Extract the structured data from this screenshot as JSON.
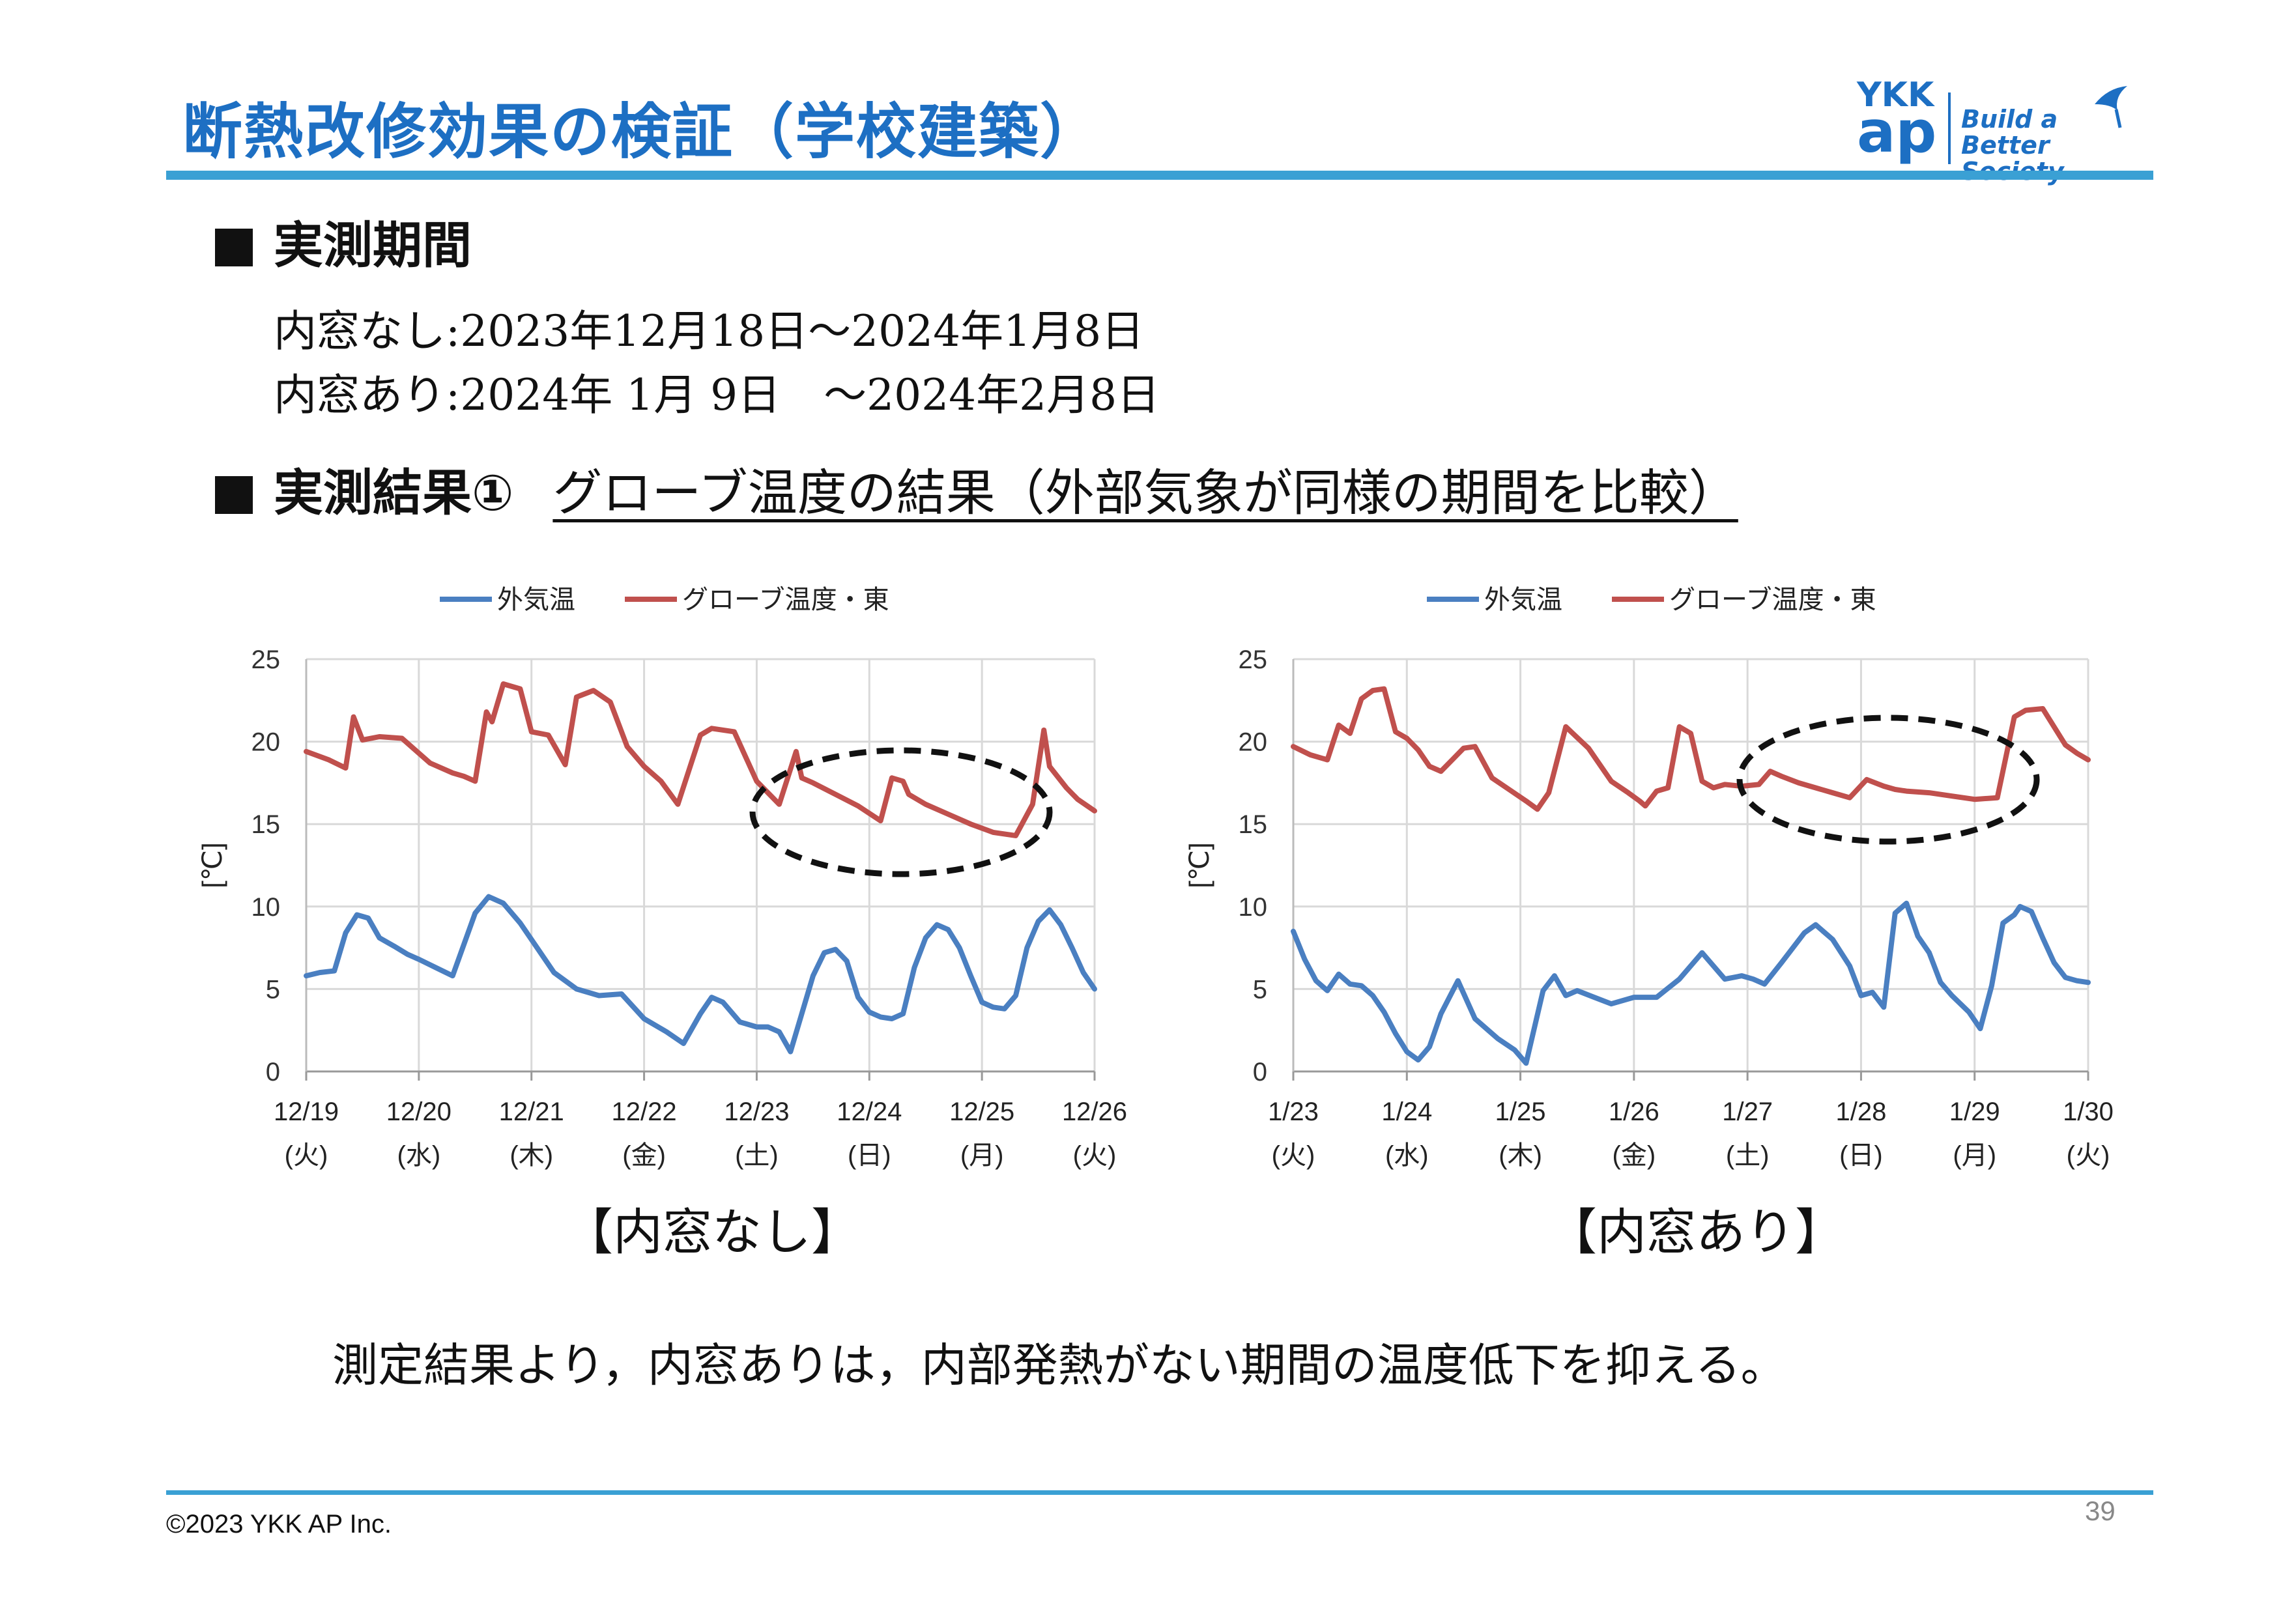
{
  "slide": {
    "title": "断熱改修効果の検証（学校建築）",
    "logo": {
      "mark_top": "YKK",
      "mark_bottom": "ap",
      "tagline_1": "Build a",
      "tagline_2": "Better Society"
    },
    "section1_heading": "実測期間",
    "period_without": "内窓なし:2023年12月18日～2024年1月8日",
    "period_with": "内窓あり:2024年 1月 9日　～2024年2月8日",
    "section2_heading": "実測結果①",
    "section2_subheading": "グローブ温度の結果（外部気象が同様の期間を比較）",
    "caption_left": "【内窓なし】",
    "caption_right": "【内窓あり】",
    "conclusion": "測定結果より，内窓ありは，内部発熱がない期間の温度低下を抑える。",
    "copyright": "©2023 YKK AP Inc.",
    "page_number": "39"
  },
  "colors": {
    "title": "#1d6fc3",
    "rule": "#3aa0d4",
    "outdoor": "#4a7fc1",
    "globe": "#c0504d",
    "grid": "#d9d9d9"
  },
  "chart_data": [
    {
      "type": "line",
      "ylabel": "[℃]",
      "ylim": [
        0,
        25
      ],
      "yticks": [
        "0",
        "5",
        "10",
        "15",
        "20",
        "25"
      ],
      "grid": true,
      "legend": "top",
      "categories": [
        "12/19",
        "12/20",
        "12/21",
        "12/22",
        "12/23",
        "12/24",
        "12/25",
        "12/26"
      ],
      "weekdays": [
        "(火)",
        "(水)",
        "(木)",
        "(金)",
        "(土)",
        "(日)",
        "(月)",
        "(火)"
      ],
      "annotation": "dashed ellipse around Globe temperature, 12/23–12/25",
      "series": [
        {
          "name": "外気温",
          "color": "#4a7fc1",
          "x": [
            0,
            0.12,
            0.25,
            0.35,
            0.45,
            0.55,
            0.65,
            0.78,
            0.9,
            1.0,
            1.15,
            1.3,
            1.5,
            1.62,
            1.75,
            1.9,
            2.05,
            2.2,
            2.4,
            2.6,
            2.8,
            3.0,
            3.2,
            3.35,
            3.5,
            3.6,
            3.7,
            3.85,
            4.0,
            4.1,
            4.2,
            4.3,
            4.4,
            4.5,
            4.6,
            4.7,
            4.8,
            4.9,
            5.0,
            5.1,
            5.2,
            5.3,
            5.4,
            5.5,
            5.6,
            5.7,
            5.8,
            5.9,
            6.0,
            6.1,
            6.2,
            6.3,
            6.4,
            6.5,
            6.6,
            6.7,
            6.8,
            6.9,
            7.0
          ],
          "values": [
            5.8,
            6.0,
            6.1,
            8.4,
            9.5,
            9.3,
            8.1,
            7.6,
            7.1,
            6.8,
            6.3,
            5.8,
            9.6,
            10.6,
            10.2,
            9.0,
            7.5,
            6.0,
            5.0,
            4.6,
            4.7,
            3.2,
            2.4,
            1.7,
            3.5,
            4.5,
            4.2,
            3.0,
            2.7,
            2.7,
            2.4,
            1.2,
            3.5,
            5.8,
            7.2,
            7.4,
            6.7,
            4.5,
            3.6,
            3.3,
            3.2,
            3.5,
            6.3,
            8.1,
            8.9,
            8.6,
            7.5,
            5.8,
            4.2,
            3.9,
            3.8,
            4.6,
            7.5,
            9.1,
            9.8,
            8.9,
            7.5,
            6.0,
            5.0
          ]
        },
        {
          "name": "グローブ温度・東",
          "color": "#c0504d",
          "x": [
            0,
            0.2,
            0.35,
            0.42,
            0.5,
            0.65,
            0.85,
            0.95,
            1.1,
            1.3,
            1.4,
            1.5,
            1.6,
            1.65,
            1.75,
            1.9,
            2.0,
            2.15,
            2.3,
            2.4,
            2.55,
            2.7,
            2.85,
            3.0,
            3.15,
            3.3,
            3.5,
            3.6,
            3.8,
            4.0,
            4.2,
            4.35,
            4.4,
            4.5,
            4.7,
            4.9,
            5.1,
            5.2,
            5.3,
            5.35,
            5.5,
            5.7,
            5.9,
            6.1,
            6.3,
            6.45,
            6.55,
            6.6,
            6.75,
            6.85,
            7.0
          ],
          "values": [
            19.4,
            18.9,
            18.4,
            21.5,
            20.1,
            20.3,
            20.2,
            19.6,
            18.7,
            18.1,
            17.9,
            17.6,
            21.8,
            21.2,
            23.5,
            23.2,
            20.6,
            20.4,
            18.6,
            22.7,
            23.1,
            22.4,
            19.7,
            18.5,
            17.6,
            16.2,
            20.4,
            20.8,
            20.6,
            17.6,
            16.2,
            19.4,
            17.8,
            17.5,
            16.8,
            16.1,
            15.2,
            17.8,
            17.6,
            16.8,
            16.2,
            15.6,
            15.0,
            14.5,
            14.3,
            16.2,
            20.7,
            18.5,
            17.2,
            16.5,
            15.8
          ]
        }
      ]
    },
    {
      "type": "line",
      "ylabel": "[℃]",
      "ylim": [
        0,
        25
      ],
      "yticks": [
        "0",
        "5",
        "10",
        "15",
        "20",
        "25"
      ],
      "grid": true,
      "legend": "top",
      "categories": [
        "1/23",
        "1/24",
        "1/25",
        "1/26",
        "1/27",
        "1/28",
        "1/29",
        "1/30"
      ],
      "weekdays": [
        "(火)",
        "(水)",
        "(木)",
        "(金)",
        "(土)",
        "(日)",
        "(月)",
        "(火)"
      ],
      "annotation": "dashed ellipse around Globe temperature, 1/27–1/29",
      "series": [
        {
          "name": "外気温",
          "color": "#4a7fc1",
          "x": [
            0,
            0.1,
            0.2,
            0.3,
            0.4,
            0.5,
            0.6,
            0.7,
            0.8,
            0.9,
            1.0,
            1.1,
            1.2,
            1.3,
            1.45,
            1.6,
            1.8,
            1.95,
            2.05,
            2.2,
            2.3,
            2.4,
            2.5,
            2.65,
            2.8,
            3.0,
            3.2,
            3.4,
            3.6,
            3.8,
            3.95,
            4.05,
            4.15,
            4.3,
            4.5,
            4.6,
            4.75,
            4.9,
            5.0,
            5.1,
            5.2,
            5.3,
            5.4,
            5.5,
            5.6,
            5.7,
            5.8,
            5.95,
            6.05,
            6.15,
            6.25,
            6.35,
            6.4,
            6.5,
            6.6,
            6.7,
            6.8,
            6.9,
            7.0
          ],
          "values": [
            8.5,
            6.8,
            5.5,
            4.9,
            5.9,
            5.3,
            5.2,
            4.6,
            3.6,
            2.3,
            1.2,
            0.7,
            1.5,
            3.5,
            5.5,
            3.2,
            2.0,
            1.3,
            0.5,
            4.9,
            5.8,
            4.6,
            4.9,
            4.5,
            4.1,
            4.5,
            4.5,
            5.6,
            7.2,
            5.6,
            5.8,
            5.6,
            5.3,
            6.6,
            8.4,
            8.9,
            8.0,
            6.4,
            4.6,
            4.8,
            3.9,
            9.6,
            10.2,
            8.2,
            7.2,
            5.4,
            4.6,
            3.6,
            2.6,
            5.2,
            9.0,
            9.5,
            10.0,
            9.7,
            8.1,
            6.6,
            5.7,
            5.5,
            5.4
          ]
        },
        {
          "name": "グローブ温度・東",
          "color": "#c0504d",
          "x": [
            0,
            0.15,
            0.3,
            0.4,
            0.5,
            0.6,
            0.7,
            0.8,
            0.9,
            1.0,
            1.1,
            1.2,
            1.3,
            1.4,
            1.5,
            1.6,
            1.75,
            1.9,
            2.05,
            2.15,
            2.25,
            2.4,
            2.6,
            2.8,
            2.95,
            3.05,
            3.1,
            3.2,
            3.3,
            3.4,
            3.5,
            3.6,
            3.7,
            3.8,
            3.95,
            4.1,
            4.2,
            4.3,
            4.45,
            4.6,
            4.75,
            4.9,
            5.05,
            5.2,
            5.3,
            5.4,
            5.6,
            5.8,
            6.0,
            6.2,
            6.35,
            6.45,
            6.6,
            6.8,
            6.9,
            7.0
          ],
          "values": [
            19.7,
            19.2,
            18.9,
            21.0,
            20.5,
            22.6,
            23.1,
            23.2,
            20.6,
            20.2,
            19.5,
            18.5,
            18.2,
            18.9,
            19.6,
            19.7,
            17.8,
            17.1,
            16.4,
            15.9,
            16.9,
            20.9,
            19.6,
            17.6,
            16.9,
            16.4,
            16.1,
            17.0,
            17.2,
            20.9,
            20.5,
            17.6,
            17.2,
            17.4,
            17.3,
            17.4,
            18.2,
            17.9,
            17.5,
            17.2,
            16.9,
            16.6,
            17.7,
            17.3,
            17.1,
            17.0,
            16.9,
            16.7,
            16.5,
            16.6,
            21.5,
            21.9,
            22.0,
            19.8,
            19.3,
            18.9
          ]
        }
      ]
    }
  ]
}
